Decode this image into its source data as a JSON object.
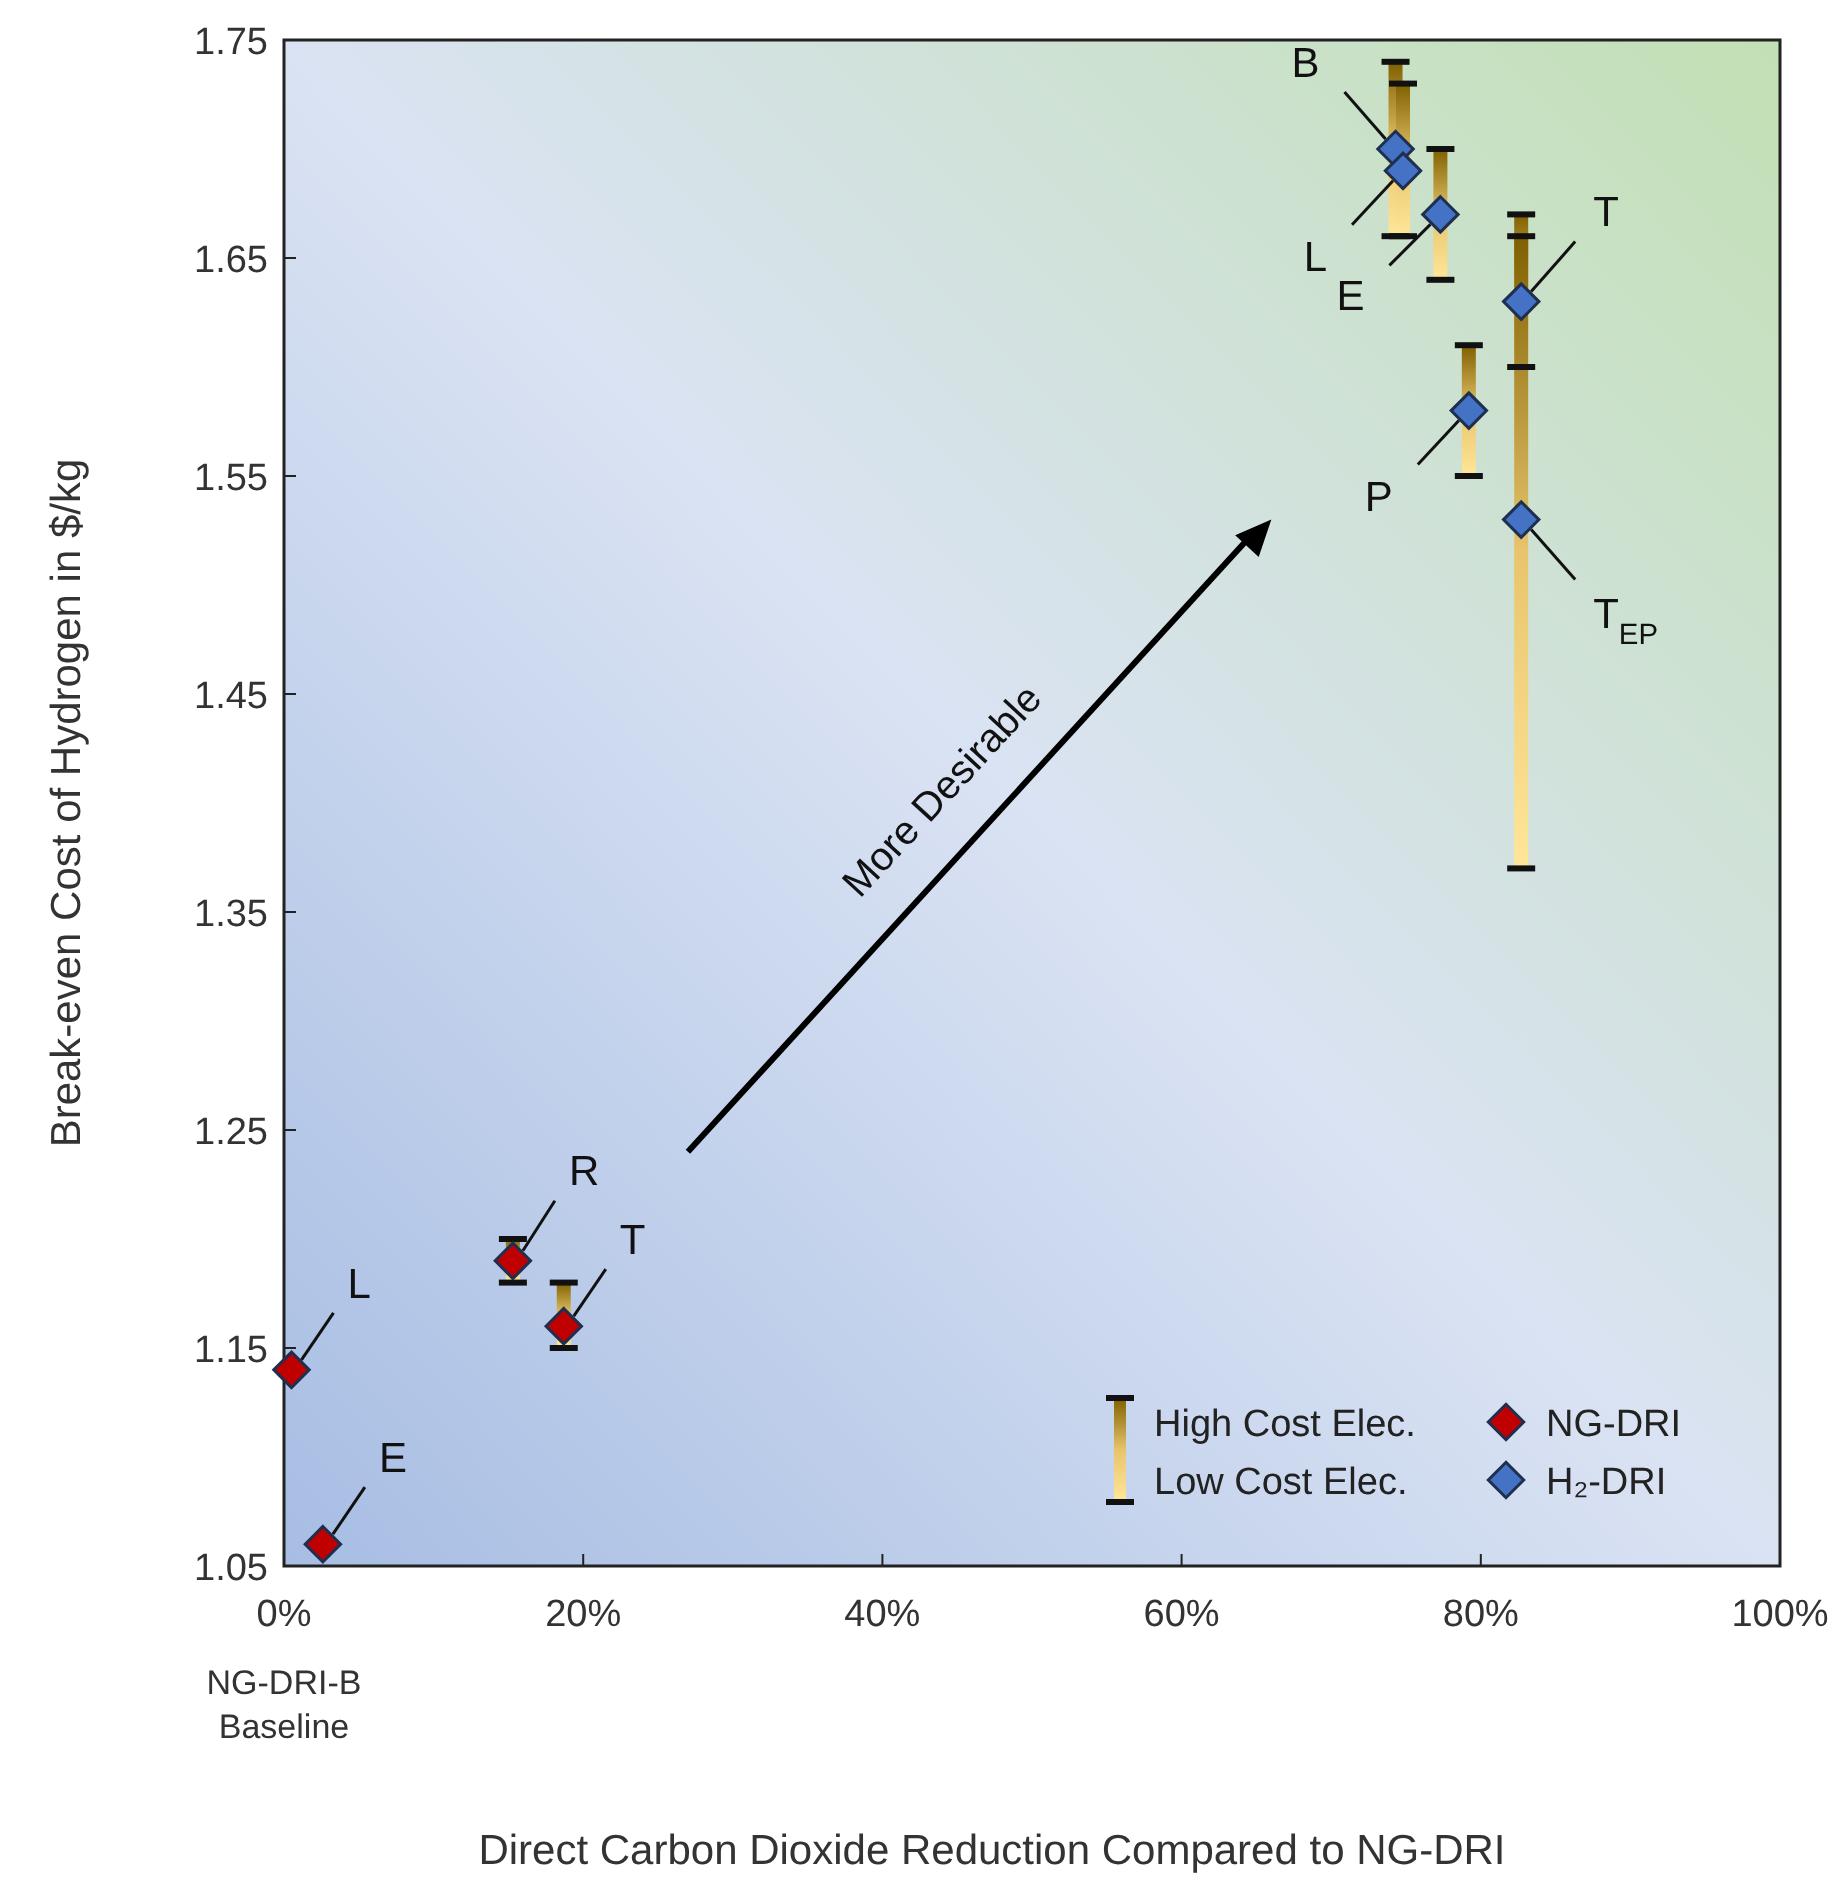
{
  "chart_data": {
    "type": "scatter",
    "xlabel": "Direct Carbon Dioxide Reduction Compared to NG-DRI",
    "ylabel": "Break-even Cost of Hydrogen in $/kg",
    "xlim": [
      0,
      100
    ],
    "xticks": [
      {
        "value": 0,
        "label": "0%"
      },
      {
        "value": 20,
        "label": "20%"
      },
      {
        "value": 40,
        "label": "40%"
      },
      {
        "value": 60,
        "label": "60%"
      },
      {
        "value": 80,
        "label": "80%"
      },
      {
        "value": 100,
        "label": "100%"
      }
    ],
    "ylim": [
      1.05,
      1.75
    ],
    "yticks": [
      1.05,
      1.15,
      1.25,
      1.35,
      1.45,
      1.55,
      1.65,
      1.75
    ],
    "marker": "diamond",
    "legend": "bottom right",
    "grid": false,
    "series": [
      {
        "name": "NG-DRI",
        "color": "#c00000",
        "x": [
          0.5,
          2.6,
          15.3,
          18.7
        ],
        "values": [
          1.14,
          1.06,
          1.19,
          1.16
        ],
        "errors": [
          null,
          null,
          [
            1.18,
            1.2
          ],
          [
            1.15,
            1.18
          ]
        ]
      },
      {
        "name": "H₂-DRI",
        "color": "#4472c4",
        "x": [
          74.3,
          74.8,
          77.3,
          82.7,
          79.2,
          82.7
        ],
        "values": [
          1.7,
          1.69,
          1.67,
          1.63,
          1.58,
          1.53
        ],
        "errors": [
          [
            1.66,
            1.74
          ],
          [
            1.66,
            1.73
          ],
          [
            1.64,
            1.7
          ],
          [
            1.6,
            1.67
          ],
          [
            1.55,
            1.61
          ],
          [
            1.37,
            1.66
          ]
        ]
      }
    ],
    "annotations": [
      {
        "text": "L",
        "x": 0.5,
        "y": 1.14
      },
      {
        "text": "E",
        "x": 2.6,
        "y": 1.06
      },
      {
        "text": "R",
        "x": 15.3,
        "y": 1.19
      },
      {
        "text": "T",
        "x": 18.7,
        "y": 1.16
      },
      {
        "text": "B",
        "x": 74.3,
        "y": 1.7
      },
      {
        "text": "L",
        "x": 74.8,
        "y": 1.69
      },
      {
        "text": "E",
        "x": 77.3,
        "y": 1.67
      },
      {
        "text": "T",
        "x": 82.7,
        "y": 1.63
      },
      {
        "text": "P",
        "x": 79.2,
        "y": 1.58
      },
      {
        "text": "T$_{EP}$",
        "x": 82.7,
        "y": 1.53
      },
      "More Desirable",
      "NG-DRI-B Baseline",
      "High Cost Elec.",
      "Low Cost Elec."
    ]
  }
}
